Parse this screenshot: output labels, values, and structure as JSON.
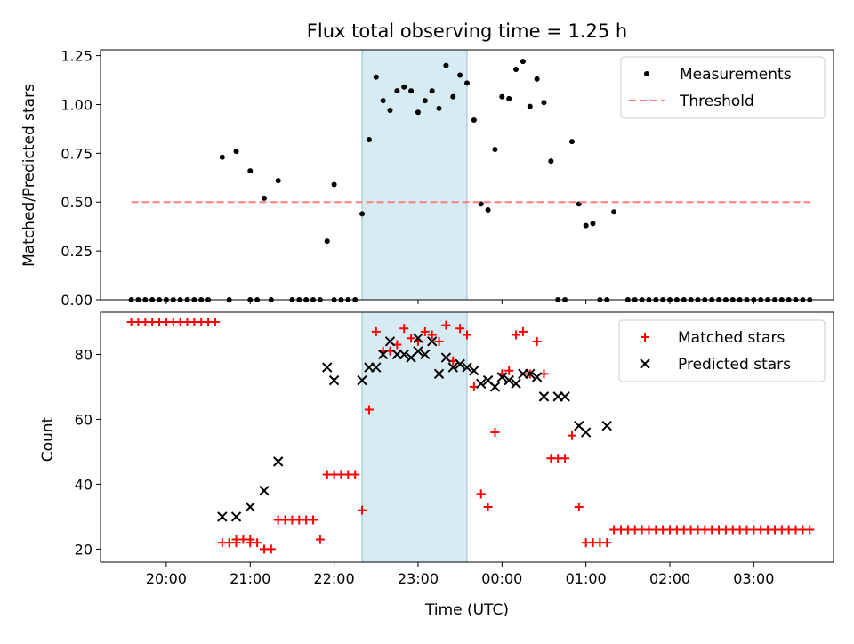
{
  "chart_data": [
    {
      "type": "scatter",
      "title": "Flux total observing time = 1.25 h",
      "xlabel": "",
      "ylabel": "Matched/Predicted stars",
      "xlim": [
        "19:13",
        "03:57"
      ],
      "ylim": [
        0,
        1.28
      ],
      "yticks": [
        "0.00",
        "0.25",
        "0.50",
        "0.75",
        "1.00",
        "1.25"
      ],
      "highlight": {
        "x0": "22:20",
        "x1": "23:35"
      },
      "legend": "top-right",
      "series": [
        {
          "name": "Measurements",
          "color": "#000000",
          "marker": "dot",
          "points": [
            [
              "19:35",
              0
            ],
            [
              "19:40",
              0
            ],
            [
              "19:45",
              0
            ],
            [
              "19:50",
              0
            ],
            [
              "19:55",
              0
            ],
            [
              "20:00",
              0
            ],
            [
              "20:05",
              0
            ],
            [
              "20:10",
              0
            ],
            [
              "20:15",
              0
            ],
            [
              "20:20",
              0
            ],
            [
              "20:25",
              0
            ],
            [
              "20:30",
              0
            ],
            [
              "20:40",
              0.73
            ],
            [
              "20:45",
              0
            ],
            [
              "20:50",
              0.76
            ],
            [
              "21:00",
              0
            ],
            [
              "21:00",
              0.66
            ],
            [
              "21:05",
              0
            ],
            [
              "21:10",
              0.52
            ],
            [
              "21:15",
              0
            ],
            [
              "21:20",
              0.61
            ],
            [
              "21:30",
              0
            ],
            [
              "21:35",
              0
            ],
            [
              "21:40",
              0
            ],
            [
              "21:45",
              0
            ],
            [
              "21:50",
              0
            ],
            [
              "21:55",
              0.3
            ],
            [
              "22:00",
              0.59
            ],
            [
              "22:00",
              0
            ],
            [
              "22:05",
              0
            ],
            [
              "22:10",
              0
            ],
            [
              "22:15",
              0
            ],
            [
              "22:20",
              0.44
            ],
            [
              "22:25",
              0.82
            ],
            [
              "22:30",
              1.14
            ],
            [
              "22:35",
              1.02
            ],
            [
              "22:40",
              0.97
            ],
            [
              "22:45",
              1.07
            ],
            [
              "22:50",
              1.09
            ],
            [
              "22:55",
              1.07
            ],
            [
              "23:00",
              0.96
            ],
            [
              "23:05",
              1.02
            ],
            [
              "23:10",
              1.07
            ],
            [
              "23:15",
              0.98
            ],
            [
              "23:20",
              1.2
            ],
            [
              "23:25",
              1.04
            ],
            [
              "23:30",
              1.15
            ],
            [
              "23:35",
              1.11
            ],
            [
              "23:40",
              0.92
            ],
            [
              "23:45",
              0.49
            ],
            [
              "23:50",
              0.46
            ],
            [
              "23:55",
              0.77
            ],
            [
              "00:00",
              1.04
            ],
            [
              "00:05",
              1.03
            ],
            [
              "00:10",
              1.18
            ],
            [
              "00:15",
              1.22
            ],
            [
              "00:20",
              0.99
            ],
            [
              "00:25",
              1.13
            ],
            [
              "00:30",
              1.01
            ],
            [
              "00:35",
              0.71
            ],
            [
              "00:40",
              0
            ],
            [
              "00:45",
              0
            ],
            [
              "00:50",
              0.81
            ],
            [
              "00:55",
              0.49
            ],
            [
              "01:00",
              0.38
            ],
            [
              "01:05",
              0.39
            ],
            [
              "01:10",
              0
            ],
            [
              "01:15",
              0
            ],
            [
              "01:20",
              0.45
            ],
            [
              "01:30",
              0
            ],
            [
              "01:35",
              0
            ],
            [
              "01:40",
              0
            ],
            [
              "01:45",
              0
            ],
            [
              "01:50",
              0
            ],
            [
              "01:55",
              0
            ],
            [
              "02:00",
              0
            ],
            [
              "02:05",
              0
            ],
            [
              "02:10",
              0
            ],
            [
              "02:15",
              0
            ],
            [
              "02:20",
              0
            ],
            [
              "02:25",
              0
            ],
            [
              "02:30",
              0
            ],
            [
              "02:35",
              0
            ],
            [
              "02:40",
              0
            ],
            [
              "02:45",
              0
            ],
            [
              "02:50",
              0
            ],
            [
              "02:55",
              0
            ],
            [
              "03:00",
              0
            ],
            [
              "03:05",
              0
            ],
            [
              "03:10",
              0
            ],
            [
              "03:15",
              0
            ],
            [
              "03:20",
              0
            ],
            [
              "03:25",
              0
            ],
            [
              "03:30",
              0
            ],
            [
              "03:35",
              0
            ],
            [
              "03:40",
              0
            ]
          ]
        },
        {
          "name": "Threshold",
          "color": "#ff7f7f",
          "marker": "dashed-line",
          "points": [
            [
              "19:35",
              0.5
            ],
            [
              "03:40",
              0.5
            ]
          ]
        }
      ]
    },
    {
      "type": "scatter",
      "title": "",
      "xlabel": "Time (UTC)",
      "ylabel": "Count",
      "xlim": [
        "19:13",
        "03:57"
      ],
      "ylim": [
        16,
        93
      ],
      "yticks": [
        "20",
        "40",
        "60",
        "80"
      ],
      "xticks": [
        "20:00",
        "21:00",
        "22:00",
        "23:00",
        "00:00",
        "01:00",
        "02:00",
        "03:00"
      ],
      "highlight": {
        "x0": "22:20",
        "x1": "23:35"
      },
      "legend": "top-right",
      "series": [
        {
          "name": "Matched stars",
          "color": "#ff0000",
          "marker": "plus",
          "points": [
            [
              "19:35",
              90
            ],
            [
              "19:40",
              90
            ],
            [
              "19:45",
              90
            ],
            [
              "19:50",
              90
            ],
            [
              "19:55",
              90
            ],
            [
              "20:00",
              90
            ],
            [
              "20:05",
              90
            ],
            [
              "20:10",
              90
            ],
            [
              "20:15",
              90
            ],
            [
              "20:20",
              90
            ],
            [
              "20:25",
              90
            ],
            [
              "20:30",
              90
            ],
            [
              "20:35",
              90
            ],
            [
              "20:40",
              22
            ],
            [
              "20:45",
              22
            ],
            [
              "20:50",
              22
            ],
            [
              "20:50",
              23
            ],
            [
              "20:55",
              23
            ],
            [
              "21:00",
              23
            ],
            [
              "21:00",
              22
            ],
            [
              "21:05",
              22
            ],
            [
              "21:10",
              20
            ],
            [
              "21:15",
              20
            ],
            [
              "21:20",
              29
            ],
            [
              "21:25",
              29
            ],
            [
              "21:30",
              29
            ],
            [
              "21:35",
              29
            ],
            [
              "21:40",
              29
            ],
            [
              "21:45",
              29
            ],
            [
              "21:50",
              23
            ],
            [
              "21:55",
              43
            ],
            [
              "22:00",
              43
            ],
            [
              "22:05",
              43
            ],
            [
              "22:10",
              43
            ],
            [
              "22:15",
              43
            ],
            [
              "22:20",
              32
            ],
            [
              "22:25",
              63
            ],
            [
              "22:30",
              87
            ],
            [
              "22:35",
              81
            ],
            [
              "22:40",
              81
            ],
            [
              "22:45",
              83
            ],
            [
              "22:50",
              88
            ],
            [
              "22:55",
              85
            ],
            [
              "23:00",
              84
            ],
            [
              "23:05",
              87
            ],
            [
              "23:10",
              86
            ],
            [
              "23:15",
              84
            ],
            [
              "23:20",
              89
            ],
            [
              "23:25",
              78
            ],
            [
              "23:30",
              88
            ],
            [
              "23:35",
              86
            ],
            [
              "23:40",
              70
            ],
            [
              "23:45",
              37
            ],
            [
              "23:50",
              33
            ],
            [
              "23:55",
              56
            ],
            [
              "00:00",
              74
            ],
            [
              "00:05",
              75
            ],
            [
              "00:10",
              86
            ],
            [
              "00:15",
              87
            ],
            [
              "00:20",
              74
            ],
            [
              "00:25",
              84
            ],
            [
              "00:30",
              74
            ],
            [
              "00:35",
              48
            ],
            [
              "00:40",
              48
            ],
            [
              "00:45",
              48
            ],
            [
              "00:50",
              55
            ],
            [
              "00:55",
              33
            ],
            [
              "01:00",
              22
            ],
            [
              "01:05",
              22
            ],
            [
              "01:10",
              22
            ],
            [
              "01:15",
              22
            ],
            [
              "01:20",
              26
            ],
            [
              "01:25",
              26
            ],
            [
              "01:30",
              26
            ],
            [
              "01:35",
              26
            ],
            [
              "01:40",
              26
            ],
            [
              "01:45",
              26
            ],
            [
              "01:50",
              26
            ],
            [
              "01:55",
              26
            ],
            [
              "02:00",
              26
            ],
            [
              "02:05",
              26
            ],
            [
              "02:10",
              26
            ],
            [
              "02:15",
              26
            ],
            [
              "02:20",
              26
            ],
            [
              "02:25",
              26
            ],
            [
              "02:30",
              26
            ],
            [
              "02:35",
              26
            ],
            [
              "02:40",
              26
            ],
            [
              "02:45",
              26
            ],
            [
              "02:50",
              26
            ],
            [
              "02:55",
              26
            ],
            [
              "03:00",
              26
            ],
            [
              "03:05",
              26
            ],
            [
              "03:10",
              26
            ],
            [
              "03:15",
              26
            ],
            [
              "03:20",
              26
            ],
            [
              "03:25",
              26
            ],
            [
              "03:30",
              26
            ],
            [
              "03:35",
              26
            ],
            [
              "03:40",
              26
            ]
          ]
        },
        {
          "name": "Predicted stars",
          "color": "#000000",
          "marker": "x",
          "points": [
            [
              "20:40",
              30
            ],
            [
              "20:50",
              30
            ],
            [
              "21:00",
              33
            ],
            [
              "21:10",
              38
            ],
            [
              "21:20",
              47
            ],
            [
              "21:55",
              76
            ],
            [
              "22:00",
              72
            ],
            [
              "22:20",
              72
            ],
            [
              "22:25",
              76
            ],
            [
              "22:30",
              76
            ],
            [
              "22:35",
              80
            ],
            [
              "22:40",
              84
            ],
            [
              "22:45",
              80
            ],
            [
              "22:50",
              80
            ],
            [
              "22:55",
              79
            ],
            [
              "23:00",
              81
            ],
            [
              "23:00",
              85
            ],
            [
              "23:05",
              80
            ],
            [
              "23:10",
              84
            ],
            [
              "23:15",
              74
            ],
            [
              "23:20",
              79
            ],
            [
              "23:25",
              76
            ],
            [
              "23:30",
              77
            ],
            [
              "23:35",
              76
            ],
            [
              "23:40",
              75
            ],
            [
              "23:45",
              71
            ],
            [
              "23:50",
              72
            ],
            [
              "23:55",
              70
            ],
            [
              "00:00",
              73
            ],
            [
              "00:05",
              72
            ],
            [
              "00:10",
              71
            ],
            [
              "00:15",
              74
            ],
            [
              "00:20",
              74
            ],
            [
              "00:25",
              73
            ],
            [
              "00:30",
              67
            ],
            [
              "00:40",
              67
            ],
            [
              "00:45",
              67
            ],
            [
              "00:55",
              58
            ],
            [
              "01:00",
              56
            ],
            [
              "01:15",
              58
            ]
          ]
        }
      ]
    }
  ]
}
